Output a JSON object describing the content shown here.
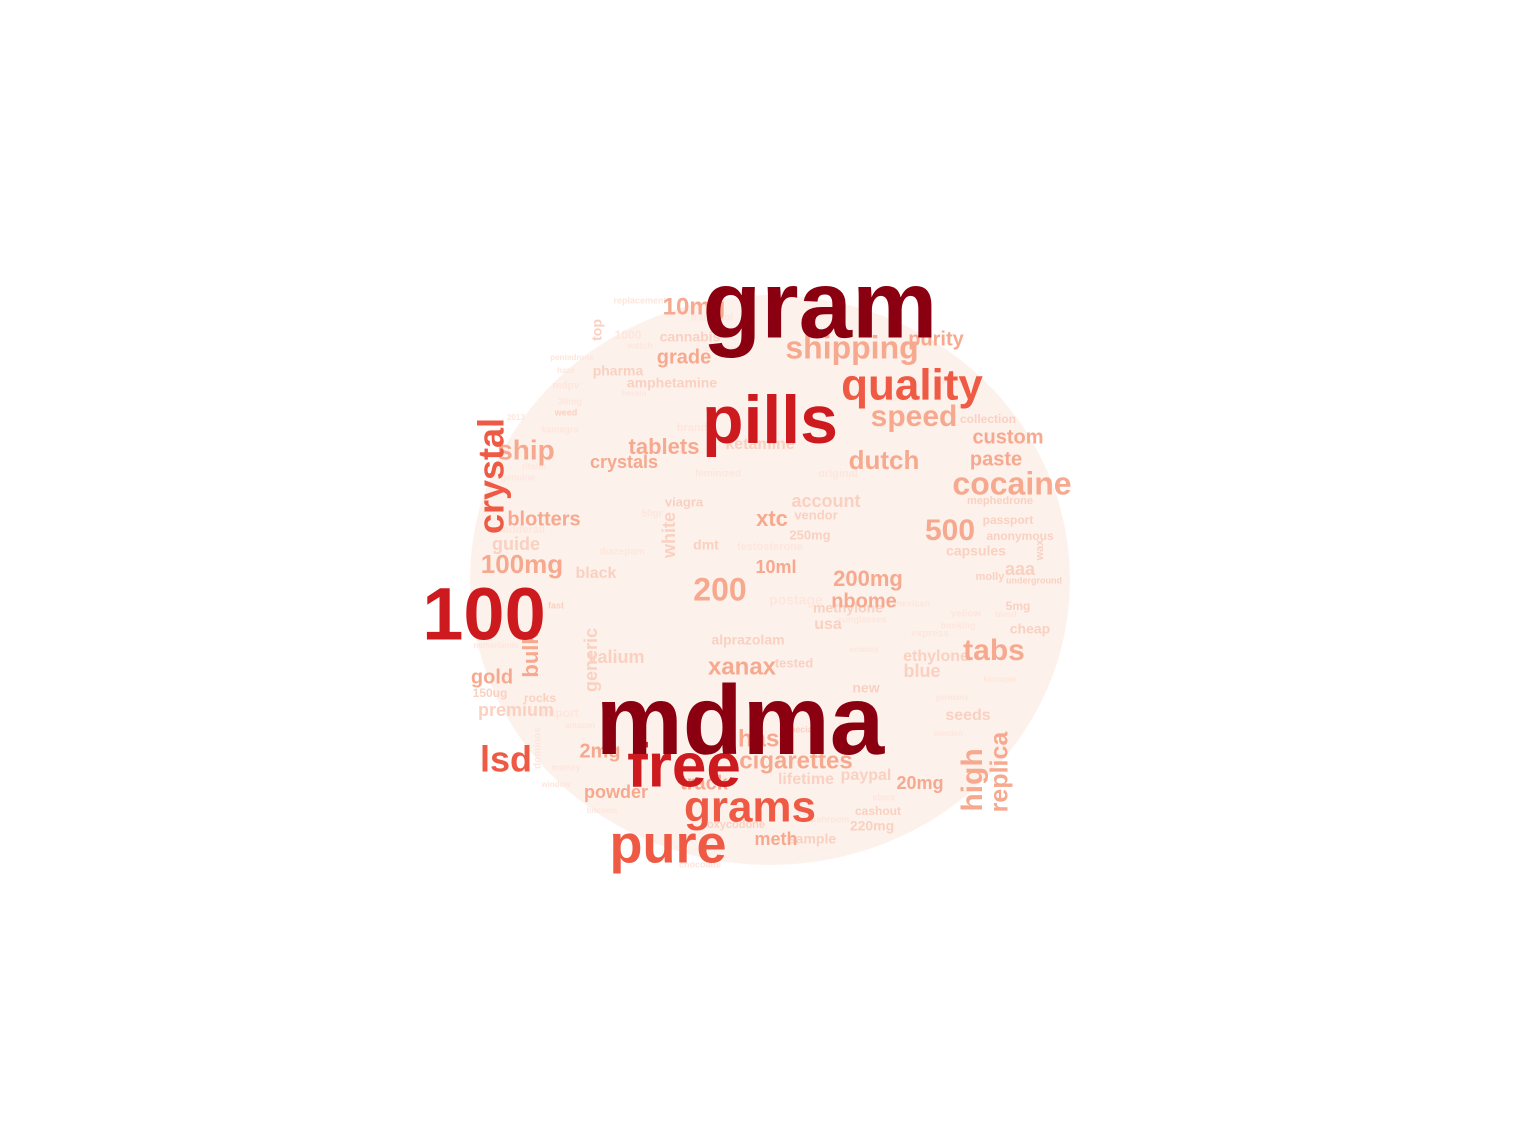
{
  "palette": {
    "t1": "#8b0010",
    "t2": "#cc1a1f",
    "t3": "#ef5a44",
    "t4": "#f6a98e",
    "t5": "#fad1c0",
    "t6": "#fde6dc"
  },
  "words": [
    {
      "text": "gram",
      "tier": "t1"
    },
    {
      "text": "mdma",
      "tier": "t1"
    },
    {
      "text": "pills",
      "tier": "t2"
    },
    {
      "text": "100",
      "tier": "t2"
    },
    {
      "text": "free",
      "tier": "t2"
    },
    {
      "text": "pure",
      "tier": "t3"
    },
    {
      "text": "quality",
      "tier": "t3"
    },
    {
      "text": "grams",
      "tier": "t3"
    },
    {
      "text": "crystal",
      "tier": "t3"
    },
    {
      "text": "lsd",
      "tier": "t3"
    },
    {
      "text": "cocaine",
      "tier": "t4"
    },
    {
      "text": "shipping",
      "tier": "t4"
    },
    {
      "text": "speed",
      "tier": "t4"
    },
    {
      "text": "tabs",
      "tier": "t4"
    },
    {
      "text": "high",
      "tier": "t4"
    },
    {
      "text": "replica",
      "tier": "t4"
    },
    {
      "text": "500",
      "tier": "t4"
    },
    {
      "text": "10mg",
      "tier": "t4"
    },
    {
      "text": "200",
      "tier": "t4"
    },
    {
      "text": "dutch",
      "tier": "t4"
    },
    {
      "text": "ship",
      "tier": "t4"
    },
    {
      "text": "100mg",
      "tier": "t4"
    },
    {
      "text": "tablets",
      "tier": "t4"
    },
    {
      "text": "hash",
      "tier": "t4"
    },
    {
      "text": "cigarettes",
      "tier": "t4"
    },
    {
      "text": "xanax",
      "tier": "t4"
    },
    {
      "text": "200mg",
      "tier": "t4"
    },
    {
      "text": "bulk",
      "tier": "t4"
    },
    {
      "text": "gold",
      "tier": "t4"
    },
    {
      "text": "track",
      "tier": "t4"
    },
    {
      "text": "2mg",
      "tier": "t4"
    },
    {
      "text": "purity",
      "tier": "t4"
    },
    {
      "text": "custom",
      "tier": "t4"
    },
    {
      "text": "paste",
      "tier": "t4"
    },
    {
      "text": "blotters",
      "tier": "t4"
    },
    {
      "text": "crystals",
      "tier": "t4"
    },
    {
      "text": "xtc",
      "tier": "t4"
    },
    {
      "text": "nbome",
      "tier": "t4"
    },
    {
      "text": "10ml",
      "tier": "t4"
    },
    {
      "text": "powder",
      "tier": "t4"
    },
    {
      "text": "meth",
      "tier": "t4"
    },
    {
      "text": "grade",
      "tier": "t4"
    },
    {
      "text": "20mg",
      "tier": "t4"
    },
    {
      "text": "generic",
      "tier": "t5"
    },
    {
      "text": "white",
      "tier": "t5"
    },
    {
      "text": "premium",
      "tier": "t5"
    },
    {
      "text": "valium",
      "tier": "t5"
    },
    {
      "text": "account",
      "tier": "t5"
    },
    {
      "text": "ketamine",
      "tier": "t5"
    },
    {
      "text": "aaa",
      "tier": "t5"
    },
    {
      "text": "seeds",
      "tier": "t5"
    },
    {
      "text": "cheap",
      "tier": "t5"
    },
    {
      "text": "blue",
      "tier": "t5"
    },
    {
      "text": "sample",
      "tier": "t5"
    },
    {
      "text": "paypal",
      "tier": "t5"
    },
    {
      "text": "lifetime",
      "tier": "t5"
    },
    {
      "text": "220mg",
      "tier": "t5"
    },
    {
      "text": "top",
      "tier": "t5"
    },
    {
      "text": "pharma",
      "tier": "t5"
    },
    {
      "text": "amphetamine",
      "tier": "t5"
    },
    {
      "text": "cannabis",
      "tier": "t5"
    },
    {
      "text": "alprazolam",
      "tier": "t5"
    },
    {
      "text": "guide",
      "tier": "t5"
    },
    {
      "text": "black",
      "tier": "t5"
    },
    {
      "text": "usa",
      "tier": "t5"
    },
    {
      "text": "methylone",
      "tier": "t5"
    },
    {
      "text": "ethylone",
      "tier": "t5"
    },
    {
      "text": "capsules",
      "tier": "t5"
    },
    {
      "text": "passport",
      "tier": "t5"
    },
    {
      "text": "5mg",
      "tier": "t5"
    },
    {
      "text": "cashout",
      "tier": "t5"
    },
    {
      "text": "oxycodone",
      "tier": "t5"
    },
    {
      "text": "rocks",
      "tier": "t5"
    },
    {
      "text": "150ug",
      "tier": "t5"
    },
    {
      "text": "viagra",
      "tier": "t5"
    },
    {
      "text": "dmt",
      "tier": "t5"
    },
    {
      "text": "vendor",
      "tier": "t5"
    },
    {
      "text": "tested",
      "tier": "t5"
    },
    {
      "text": "250mg",
      "tier": "t5"
    },
    {
      "text": "special",
      "tier": "t5"
    },
    {
      "text": "new",
      "tier": "t5"
    },
    {
      "text": "weed",
      "tier": "t5"
    },
    {
      "text": "fast",
      "tier": "t5"
    },
    {
      "text": "collection",
      "tier": "t5"
    },
    {
      "text": "anonymous",
      "tier": "t5"
    },
    {
      "text": "underground",
      "tier": "t5"
    },
    {
      "text": "molly",
      "tier": "t5"
    },
    {
      "text": "wax",
      "tier": "t5"
    },
    {
      "text": "mephedrone",
      "tier": "t5"
    },
    {
      "text": "window",
      "tier": "t6"
    },
    {
      "text": "bitcoins",
      "tier": "t6"
    },
    {
      "text": "chocolate",
      "tier": "t6"
    },
    {
      "text": "mushroom",
      "tier": "t6"
    },
    {
      "text": "netherlands",
      "tier": "t6"
    },
    {
      "text": "replacement",
      "tier": "t6"
    },
    {
      "text": "watch",
      "tier": "t6"
    },
    {
      "text": "haze",
      "tier": "t6"
    },
    {
      "text": "mdpv",
      "tier": "t6"
    },
    {
      "text": "30mg",
      "tier": "t6"
    },
    {
      "text": "ritalin",
      "tier": "t6"
    },
    {
      "text": "adderall",
      "tier": "t6"
    },
    {
      "text": "genuine",
      "tier": "t6"
    },
    {
      "text": "kamagra",
      "tier": "t6"
    },
    {
      "text": "2013",
      "tier": "t6"
    },
    {
      "text": "money",
      "tier": "t6"
    },
    {
      "text": "amazon",
      "tier": "t6"
    },
    {
      "text": "germany",
      "tier": "t6"
    },
    {
      "text": "klonopin",
      "tier": "t6"
    },
    {
      "text": "sweden",
      "tier": "t6"
    },
    {
      "text": "books",
      "tier": "t6"
    },
    {
      "text": "stock",
      "tier": "t6"
    },
    {
      "text": "canadian",
      "tier": "t6"
    },
    {
      "text": "testosterone",
      "tier": "t6"
    },
    {
      "text": "feminized",
      "tier": "t6"
    },
    {
      "text": "tramadol",
      "tier": "t6"
    },
    {
      "text": "brand",
      "tier": "t6"
    },
    {
      "text": "original",
      "tier": "t6"
    },
    {
      "text": "express",
      "tier": "t6"
    },
    {
      "text": "pfizer",
      "tier": "t6"
    },
    {
      "text": "yellow",
      "tier": "t6"
    },
    {
      "text": "blend",
      "tier": "t6"
    },
    {
      "text": "heroin",
      "tier": "t6"
    },
    {
      "text": "import",
      "tier": "t6"
    },
    {
      "text": "dominos",
      "tier": "t6"
    },
    {
      "text": "sunglasses",
      "tier": "t6"
    },
    {
      "text": "ecstasy",
      "tier": "t6"
    },
    {
      "text": "mexican",
      "tier": "t6"
    },
    {
      "text": "1000",
      "tier": "t6"
    },
    {
      "text": "50gr",
      "tier": "t6"
    },
    {
      "text": "booking",
      "tier": "t6"
    },
    {
      "text": "postage",
      "tier": "t6"
    },
    {
      "text": "wonderland",
      "tier": "t6"
    },
    {
      "text": "pentedrone",
      "tier": "t6"
    },
    {
      "text": "diazepam",
      "tier": "t6"
    }
  ]
}
